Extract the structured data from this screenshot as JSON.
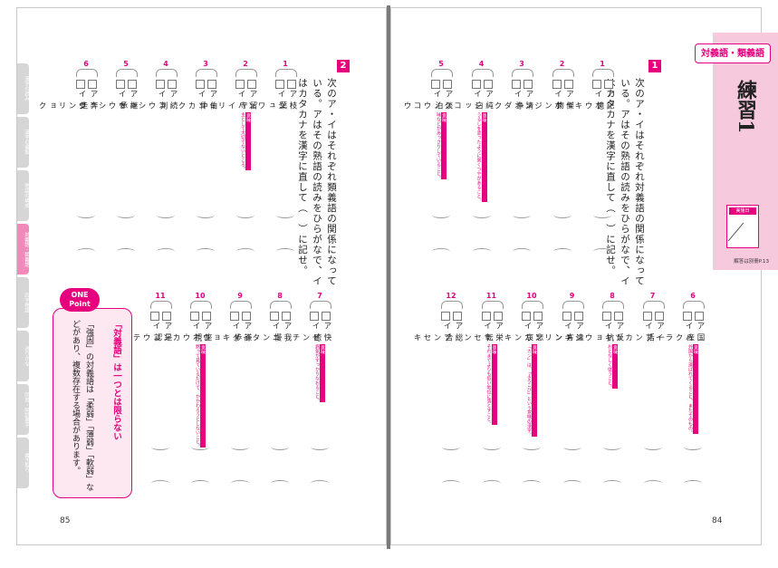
{
  "left_page": {
    "page_number": "85",
    "side_tabs": [
      "漢字の読み",
      "漢字の書取",
      "熟語の構成",
      "対義語・類義語",
      "四字熟語",
      "送りがな",
      "同音・同訓異字",
      "書き取り"
    ],
    "question2": {
      "number": "2",
      "instruction_lines": [
        "次のア・イはそれぞれ類義語の関係になって",
        "いる。アはその熟語の読みをひらがなで、イ",
        "はカタカナを漢字に直して（　）に記せ。"
      ],
      "items": [
        {
          "num": "1",
          "a": "枝葉",
          "b": "シュワン"
        },
        {
          "num": "2",
          "a": "留守",
          "b": "ハイリョ",
          "note_tag": "意味",
          "note": "主として大切でないところ。"
        },
        {
          "num": "3",
          "a": "伯仲",
          "b": "ゴカク"
        },
        {
          "num": "4",
          "a": "続判",
          "b": "コウシュウ"
        },
        {
          "num": "5",
          "a": "継承",
          "b": "トウシュウ"
        },
        {
          "num": "6",
          "a": "奔走",
          "b": "ジンリョク"
        },
        {
          "num": "7",
          "a": "快癒",
          "b": "ゼンチ",
          "note_tag": "意味",
          "note": "病気がすっかりなおること。"
        },
        {
          "num": "8",
          "a": "我慢",
          "b": "ニンタイ"
        },
        {
          "num": "9",
          "a": "謙歩",
          "b": "ダキョウ"
        },
        {
          "num": "10",
          "a": "座視",
          "b": "ボウカン",
          "note_tag": "意味",
          "note": "黙って見ているだけで、かかわろうとしないこと。"
        },
        {
          "num": "11",
          "a": "是認",
          "b": "コウテイ"
        }
      ]
    },
    "one_point": {
      "badge_line1": "ONE",
      "badge_line2": "Point",
      "heading": "「対義語」は一つとは限らない",
      "body_lines": [
        "「強固」の対義語は「柔弱」「薄弱」「軟弱」な",
        "どがあり、複数存在する場合があります。"
      ]
    }
  },
  "right_page": {
    "page_number": "84",
    "category": "対義語・類義語",
    "title": "練習1",
    "date_label": "実施日",
    "answer_ref": "解答は別冊P.13",
    "question1": {
      "number": "1",
      "instruction_lines": [
        "次のア・イはそれぞれ対義語の関係になって",
        "いる。アはその熟語の読みをひらがなで、イ",
        "はカタカナを漢字に直して（　）に記せ。"
      ],
      "items": [
        {
          "num": "1",
          "a": "記憶",
          "b": "ボウキャク"
        },
        {
          "num": "2",
          "a": "傑物",
          "b": "ボンジン"
        },
        {
          "num": "3",
          "a": "清浄",
          "b": "オダク"
        },
        {
          "num": "4",
          "a": "純白",
          "b": "シッコク",
          "note_tag": "意味",
          "note": "うるしを塗ったように黒くつやがあること。"
        },
        {
          "num": "5",
          "a": "淡泊",
          "b": "ノウコウ",
          "note_tag": "意味",
          "note": "味などがあっさりしていること。"
        },
        {
          "num": "6",
          "a": "国産",
          "b": "ハクライ",
          "note_tag": "意味",
          "note": "外国から運ばれてくること。またそのもの。"
        },
        {
          "num": "7",
          "a": "一括",
          "b": "ブンカツ"
        },
        {
          "num": "8",
          "a": "反抗",
          "b": "キョウジュン",
          "note_tag": "意味",
          "note": "おとなしく従うこと。"
        },
        {
          "num": "9",
          "a": "違方",
          "b": "キンリン"
        },
        {
          "num": "10",
          "a": "悲哀",
          "b": "カンキ",
          "note_tag": "意味",
          "note": "「カン」は、「よろこび」という意味の漢字。"
        },
        {
          "num": "11",
          "a": "栄転",
          "b": "サセン",
          "note_tag": "意味",
          "note": "それまでよりも低い地位に落とすこと。"
        },
        {
          "num": "12",
          "a": "総合",
          "b": "ブンセキ"
        }
      ]
    }
  }
}
